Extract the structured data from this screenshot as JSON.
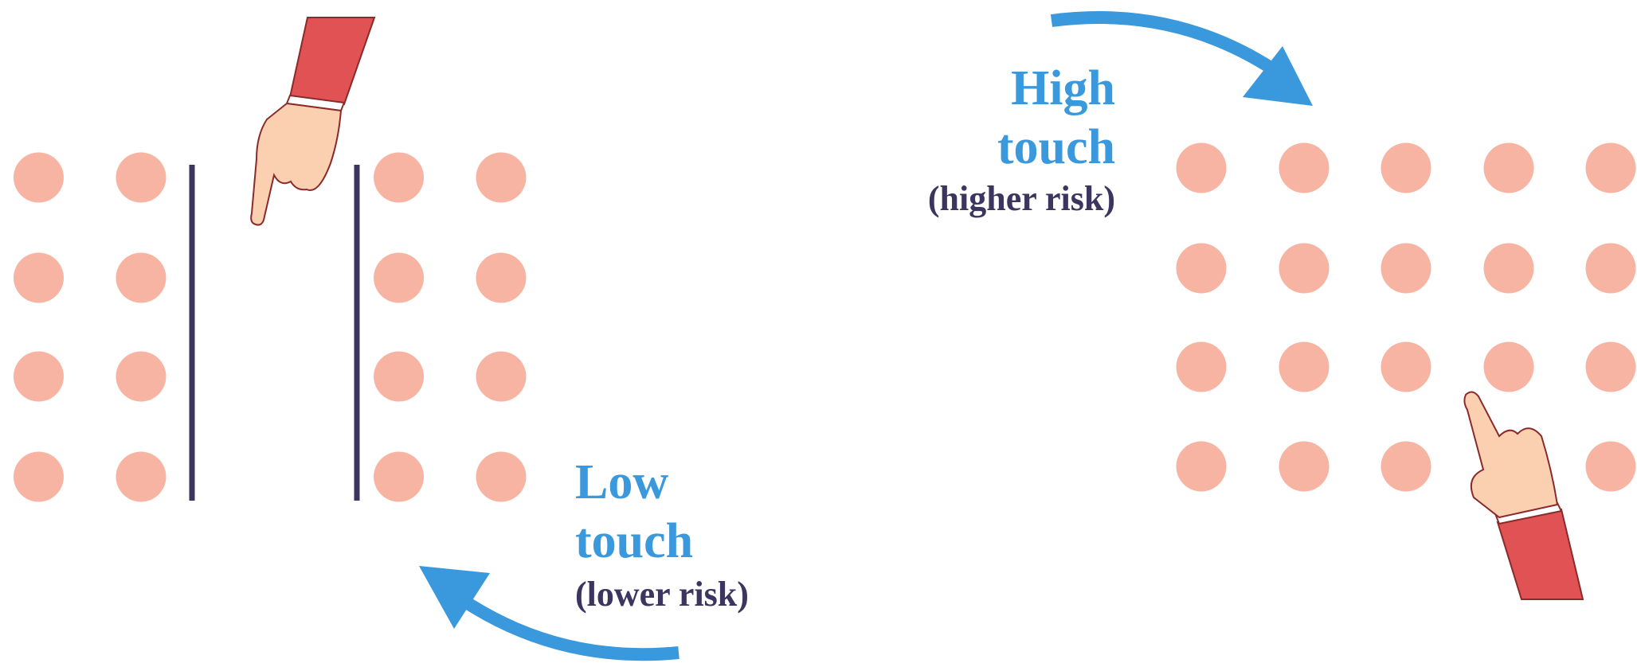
{
  "high_touch": {
    "lines": [
      "High",
      "touch"
    ],
    "note": "(higher risk)"
  },
  "low_touch": {
    "lines": [
      "Low",
      "touch"
    ],
    "note": "(lower risk)"
  }
}
